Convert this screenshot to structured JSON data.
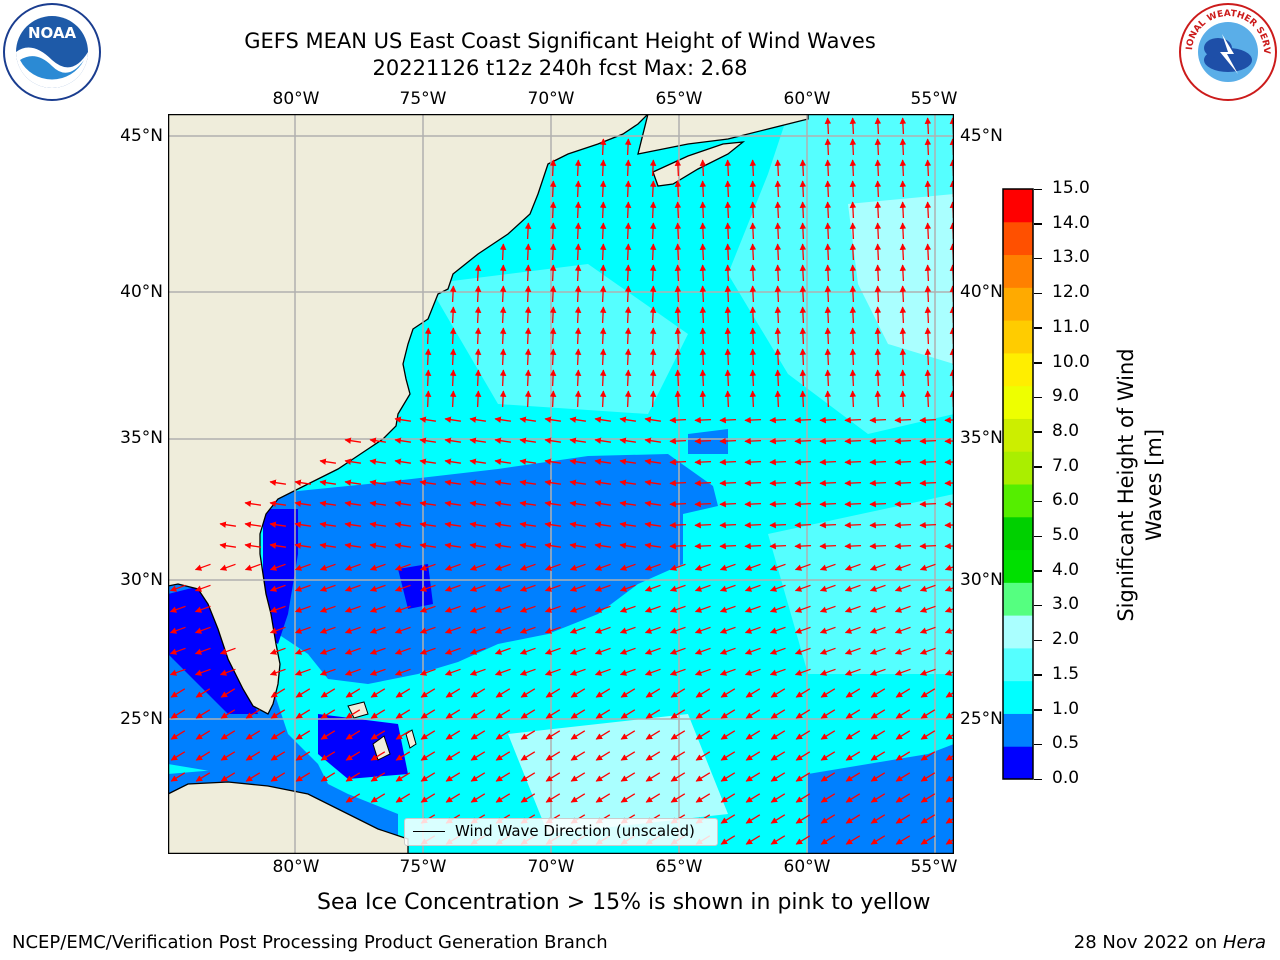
{
  "title": {
    "line1": "GEFS MEAN US East Coast Significant Height of Wind Waves",
    "line2": "20221126 t12z 240h fcst   Max: 2.68"
  },
  "logos": {
    "left": {
      "text": "NOAA",
      "icon": "noaa-logo"
    },
    "right": {
      "text": "NATIONAL WEATHER SERVICE",
      "icon": "nws-logo"
    }
  },
  "axes": {
    "lon_labels": [
      "80°W",
      "75°W",
      "70°W",
      "65°W",
      "60°W",
      "55°W"
    ],
    "lat_labels": [
      "45°N",
      "40°N",
      "35°N",
      "30°N",
      "25°N"
    ]
  },
  "colorbar": {
    "ticks": [
      "15.0",
      "14.0",
      "13.0",
      "12.0",
      "11.0",
      "10.0",
      "9.0",
      "8.0",
      "7.0",
      "6.0",
      "5.0",
      "4.0",
      "3.0",
      "2.0",
      "1.5",
      "1.0",
      "0.5",
      "0.0"
    ],
    "label_line1": "Significant Height of Wind",
    "label_line2": "Waves [m]",
    "colors": [
      "#0000ff",
      "#0080ff",
      "#00ffff",
      "#55ffff",
      "#aaffff",
      "#55ff80",
      "#00e000",
      "#00d000",
      "#55ee00",
      "#aaee00",
      "#ccee00",
      "#eeff00",
      "#ffee00",
      "#ffcc00",
      "#ffaa00",
      "#ff8000",
      "#ff5000",
      "#ff0000"
    ]
  },
  "legend": {
    "label": "Wind Wave Direction (unscaled)"
  },
  "note": "Sea Ice Concentration > 15% is shown in pink to yellow",
  "footer": {
    "left": "NCEP/EMC/Verification Post Processing Product Generation Branch",
    "right_date": "28 Nov 2022 on ",
    "right_host": "Hera"
  },
  "palette": {
    "land": "#efeddb",
    "deep_blue": "#0000ff",
    "blue": "#0080ff",
    "cyan": "#00ffff",
    "light_cyan": "#55ffff",
    "pale_cyan": "#aaffff",
    "arrow": "#ff0000",
    "grid": "#b0b0b0"
  }
}
